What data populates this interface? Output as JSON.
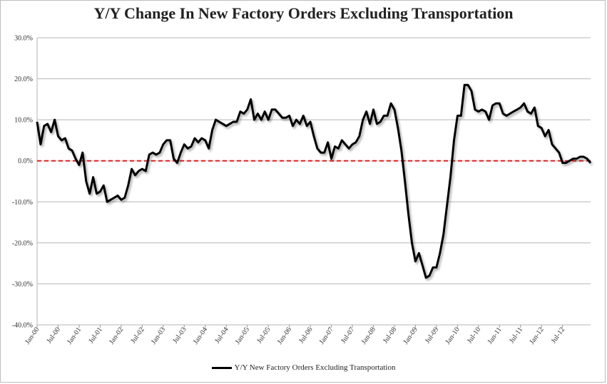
{
  "chart_data": {
    "type": "line",
    "title": "Y/Y Change In New Factory Orders Excluding Transportation",
    "xlabel": "",
    "ylabel": "",
    "ylim": [
      -40,
      30
    ],
    "y_tick_labels": [
      "30.0%",
      "20.0%",
      "10.0%",
      "0.0%",
      "-10.0%",
      "-20.0%",
      "-30.0%",
      "-40.0%"
    ],
    "x_tick_labels": [
      "Jan-00",
      "Jul-00",
      "Jan-01",
      "Jul-01",
      "Jan-02",
      "Jul-02",
      "Jan-03",
      "Jul-03",
      "Jan-04",
      "Jul-04",
      "Jan-05",
      "Jul-05",
      "Jan-06",
      "Jul-06",
      "Jan-07",
      "Jul-07",
      "Jan-08",
      "Jul-08",
      "Jan-09",
      "Jul-09",
      "Jan-10",
      "Jul-10",
      "Jan-11",
      "Jul-11",
      "Jan-12",
      "Jul-12"
    ],
    "x_start": "Jan-00",
    "grid": true,
    "reference_line": {
      "value": 0,
      "color": "#e02020",
      "style": "dashed"
    },
    "legend_position": "bottom",
    "series": [
      {
        "name": "Y/Y New Factory Orders Excluding Transportation",
        "color": "#000000",
        "values": [
          9.5,
          4.0,
          8.5,
          9.0,
          7.0,
          10.0,
          6.0,
          5.0,
          5.5,
          3.0,
          2.5,
          0.5,
          -1.0,
          2.0,
          -5.0,
          -8.0,
          -4.0,
          -8.0,
          -7.5,
          -6.0,
          -10.0,
          -9.5,
          -9.0,
          -8.5,
          -9.5,
          -9.0,
          -6.0,
          -2.0,
          -3.5,
          -2.5,
          -2.0,
          -2.5,
          1.5,
          2.0,
          1.5,
          2.0,
          4.0,
          5.0,
          5.0,
          0.5,
          -0.5,
          2.0,
          4.0,
          3.0,
          3.5,
          5.5,
          4.5,
          5.5,
          5.0,
          3.0,
          7.5,
          10.0,
          9.5,
          9.0,
          8.5,
          9.0,
          9.5,
          9.5,
          12.0,
          11.5,
          12.5,
          15.0,
          10.0,
          11.5,
          10.0,
          12.0,
          10.0,
          12.5,
          12.5,
          11.5,
          10.5,
          10.5,
          11.0,
          8.5,
          10.0,
          9.0,
          11.0,
          8.5,
          9.5,
          6.0,
          3.0,
          2.0,
          2.0,
          4.5,
          0.5,
          3.5,
          3.0,
          5.0,
          4.0,
          3.0,
          4.0,
          4.5,
          6.0,
          10.0,
          12.0,
          9.0,
          12.5,
          9.0,
          9.5,
          11.0,
          11.0,
          14.0,
          12.5,
          8.0,
          2.5,
          -5.0,
          -13.0,
          -20.0,
          -24.5,
          -22.5,
          -25.5,
          -28.5,
          -28.0,
          -26.0,
          -26.0,
          -22.5,
          -18.0,
          -11.0,
          -4.0,
          5.0,
          11.0,
          11.0,
          18.5,
          18.5,
          17.0,
          12.5,
          12.0,
          12.5,
          12.0,
          10.0,
          13.5,
          14.0,
          14.0,
          11.5,
          11.0,
          11.5,
          12.0,
          12.5,
          13.0,
          14.0,
          12.0,
          11.5,
          13.0,
          8.5,
          8.0,
          6.0,
          7.5,
          4.0,
          3.0,
          2.0,
          -0.5,
          -0.5,
          0.0,
          0.5,
          0.5,
          1.0,
          1.0,
          0.5,
          -0.5
        ]
      }
    ]
  }
}
